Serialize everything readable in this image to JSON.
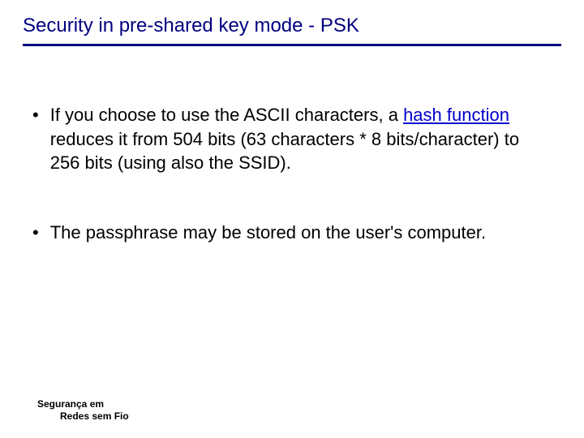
{
  "title": "Security in pre-shared key mode - PSK",
  "colors": {
    "title_color": "#000080",
    "rule_color": "#000080",
    "text_color": "#000000",
    "link_color": "#0000cc",
    "background": "#ffffff"
  },
  "typography": {
    "title_fontsize": 24,
    "body_fontsize": 22,
    "footer_fontsize": 12,
    "font_family": "Verdana"
  },
  "bullets": [
    {
      "pre": "If you choose to use the ASCII characters, a ",
      "link": "hash function",
      "post": " reduces it from 504 bits (63 characters * 8 bits/character) to 256 bits (using also the SSID)."
    },
    {
      "pre": "The passphrase may be stored on the user's computer.",
      "link": "",
      "post": ""
    }
  ],
  "footer": {
    "line1": "Segurança em",
    "line2": "Redes sem Fio"
  }
}
